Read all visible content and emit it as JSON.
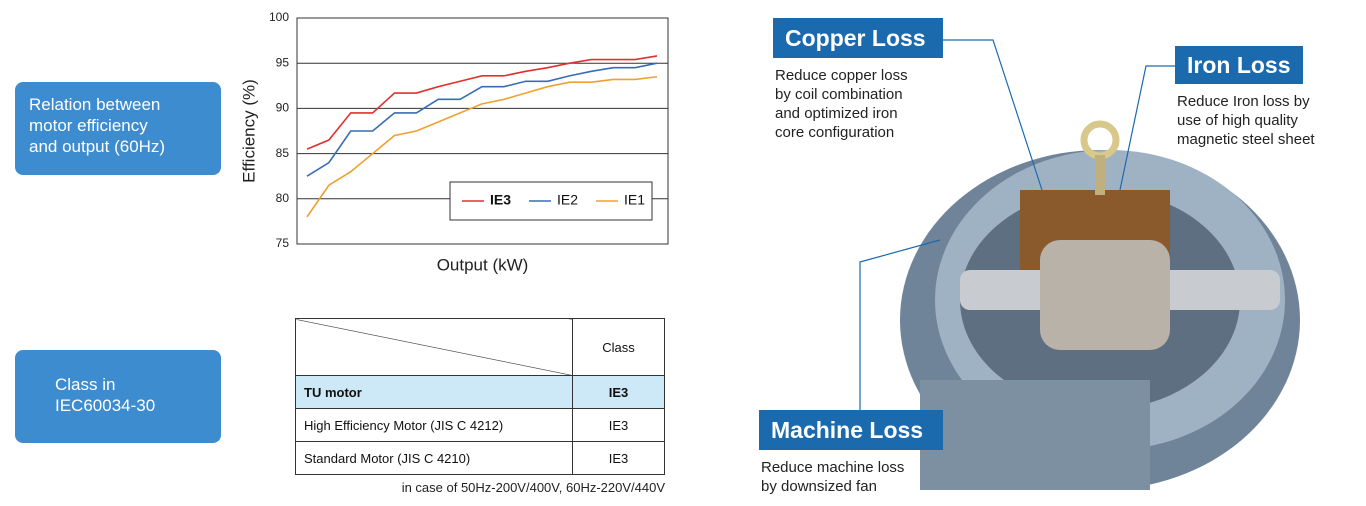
{
  "chart_data": {
    "type": "line",
    "y_label": "Efficiency (%)",
    "x_label": "Output (kW)",
    "categories": [
      null,
      null,
      null,
      null,
      null,
      null,
      null,
      null,
      null,
      null,
      null,
      null,
      null,
      null,
      null,
      null,
      null
    ],
    "series": [
      {
        "name": "IE3",
        "color": "#e03030",
        "values": [
          85.5,
          86.5,
          89.5,
          89.5,
          91.7,
          91.7,
          92.4,
          93,
          93.6,
          93.6,
          94.1,
          94.5,
          95,
          95.4,
          95.4,
          95.4,
          95.8
        ]
      },
      {
        "name": "IE2",
        "color": "#3a6cb4",
        "values": [
          82.5,
          84,
          87.5,
          87.5,
          89.5,
          89.5,
          91,
          91,
          92.4,
          92.4,
          93,
          93,
          93.6,
          94.1,
          94.5,
          94.5,
          95
        ]
      },
      {
        "name": "IE1",
        "color": "#f0a030",
        "values": [
          78,
          81.5,
          83,
          85,
          87,
          87.5,
          88.5,
          89.5,
          90.5,
          91,
          91.7,
          92.4,
          92.9,
          92.9,
          93.2,
          93.2,
          93.5
        ]
      }
    ],
    "ylim": [
      75,
      100
    ],
    "yticks": [
      75,
      80,
      85,
      90,
      95,
      100
    ],
    "grid": true,
    "legend": "lower right"
  },
  "labels": {
    "relation": [
      "Relation between",
      "motor efficiency",
      "and output (60Hz)"
    ],
    "class": [
      "Class in",
      "IEC60034-30"
    ]
  },
  "table": {
    "header": "Class",
    "rows": [
      [
        "TU motor",
        "IE3"
      ],
      [
        "High Efficiency Motor (JIS C 4212)",
        "IE3"
      ],
      [
        "Standard Motor (JIS C 4210)",
        "IE3"
      ]
    ],
    "note": "in case of 50Hz-200V/400V, 60Hz-220V/440V"
  },
  "callouts": [
    {
      "title": "Copper Loss",
      "text": [
        "Reduce copper loss",
        "by coil combination",
        "and optimized iron",
        "core configuration"
      ]
    },
    {
      "title": "Iron Loss",
      "text": [
        "Reduce Iron loss by",
        "use of high quality",
        "magnetic steel sheet"
      ]
    },
    {
      "title": "Machine Loss",
      "text": [
        "Reduce machine loss",
        "by downsized fan"
      ]
    }
  ]
}
